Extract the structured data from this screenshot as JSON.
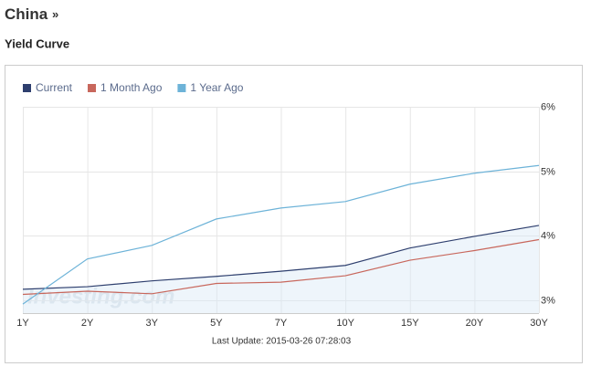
{
  "header": {
    "title": "China",
    "title_suffix": "»",
    "subtitle": "Yield Curve"
  },
  "chart_data": {
    "type": "line",
    "categories": [
      "1Y",
      "2Y",
      "3Y",
      "5Y",
      "7Y",
      "10Y",
      "15Y",
      "20Y",
      "30Y"
    ],
    "series": [
      {
        "name": "Current",
        "color": "#2e3f6e",
        "values": [
          3.17,
          3.21,
          3.3,
          3.37,
          3.45,
          3.54,
          3.81,
          3.99,
          4.16
        ],
        "area": true
      },
      {
        "name": "1 Month Ago",
        "color": "#c8675c",
        "values": [
          3.09,
          3.14,
          3.1,
          3.26,
          3.28,
          3.38,
          3.62,
          3.77,
          3.94
        ]
      },
      {
        "name": "1 Year Ago",
        "color": "#6db3d8",
        "values": [
          2.94,
          3.64,
          3.85,
          4.26,
          4.43,
          4.53,
          4.8,
          4.97,
          5.09
        ]
      }
    ],
    "ylim": [
      2.8,
      6
    ],
    "yticks": [
      {
        "value": 3,
        "label": "3%"
      },
      {
        "value": 4,
        "label": "4%"
      },
      {
        "value": 5,
        "label": "5%"
      },
      {
        "value": 6,
        "label": "6%"
      }
    ],
    "grid": true,
    "legend": "top-left",
    "watermark": "Investing.com",
    "footer": "Last Update: 2015-03-26 07:28:03"
  }
}
